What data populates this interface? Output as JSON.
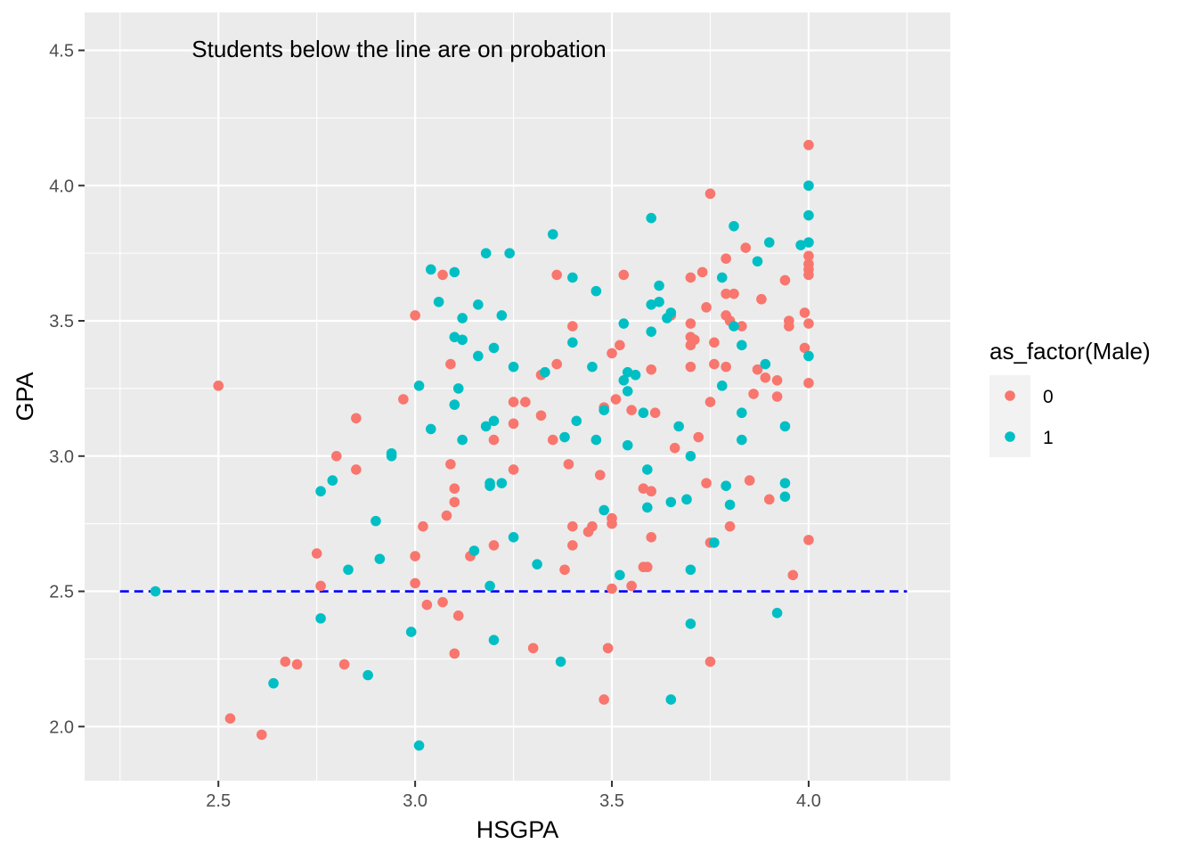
{
  "chart_data": {
    "type": "scatter",
    "title": "",
    "annotation": "Students below the line are on probation",
    "xlabel": "HSGPA",
    "ylabel": "GPA",
    "xlim": [
      2.16,
      4.36
    ],
    "ylim": [
      1.8,
      4.64
    ],
    "x_ticks": [
      "2.5",
      "3.0",
      "3.5",
      "4.0"
    ],
    "x_tick_values": [
      2.5,
      3.0,
      3.5,
      4.0
    ],
    "y_ticks": [
      "2.0",
      "2.5",
      "3.0",
      "3.5",
      "4.0",
      "4.5"
    ],
    "y_tick_values": [
      2.0,
      2.5,
      3.0,
      3.5,
      4.0,
      4.5
    ],
    "grid": true,
    "legend_position": "right",
    "legend": {
      "title": "as_factor(Male)",
      "entries": [
        {
          "label": "0",
          "color": "#F8766D"
        },
        {
          "label": "1",
          "color": "#00BFC4"
        }
      ]
    },
    "reference_line": {
      "y": 2.5,
      "x_from": 2.25,
      "x_to": 4.25,
      "color": "#0000FF",
      "style": "dashed"
    },
    "colors": {
      "panel": "#EBEBEB",
      "grid": "#FFFFFF",
      "axis_text": "#4D4D4D",
      "tick": "#333333"
    },
    "series": [
      {
        "name": "0",
        "color": "#F8766D",
        "points": [
          [
            2.5,
            3.26
          ],
          [
            2.53,
            2.03
          ],
          [
            2.61,
            1.97
          ],
          [
            2.67,
            2.24
          ],
          [
            2.7,
            2.23
          ],
          [
            2.75,
            2.64
          ],
          [
            2.76,
            2.52
          ],
          [
            2.8,
            3.0
          ],
          [
            2.82,
            2.23
          ],
          [
            2.85,
            3.14
          ],
          [
            2.85,
            2.95
          ],
          [
            2.97,
            3.21
          ],
          [
            3.0,
            3.52
          ],
          [
            3.0,
            2.63
          ],
          [
            3.0,
            2.53
          ],
          [
            3.02,
            2.74
          ],
          [
            3.03,
            2.45
          ],
          [
            3.07,
            3.67
          ],
          [
            3.07,
            2.46
          ],
          [
            3.08,
            2.78
          ],
          [
            3.09,
            3.34
          ],
          [
            3.09,
            2.97
          ],
          [
            3.1,
            2.88
          ],
          [
            3.1,
            2.83
          ],
          [
            3.1,
            2.27
          ],
          [
            3.11,
            2.41
          ],
          [
            3.14,
            2.63
          ],
          [
            3.2,
            3.06
          ],
          [
            3.2,
            2.67
          ],
          [
            3.25,
            3.2
          ],
          [
            3.25,
            3.12
          ],
          [
            3.25,
            2.95
          ],
          [
            3.28,
            3.2
          ],
          [
            3.3,
            2.29
          ],
          [
            3.32,
            3.3
          ],
          [
            3.32,
            3.15
          ],
          [
            3.35,
            3.06
          ],
          [
            3.36,
            3.67
          ],
          [
            3.36,
            3.34
          ],
          [
            3.38,
            2.58
          ],
          [
            3.39,
            2.97
          ],
          [
            3.4,
            3.48
          ],
          [
            3.4,
            2.74
          ],
          [
            3.4,
            2.67
          ],
          [
            3.44,
            2.72
          ],
          [
            3.45,
            2.74
          ],
          [
            3.47,
            2.93
          ],
          [
            3.48,
            3.18
          ],
          [
            3.48,
            2.1
          ],
          [
            3.49,
            2.29
          ],
          [
            3.5,
            3.38
          ],
          [
            3.5,
            2.77
          ],
          [
            3.5,
            2.75
          ],
          [
            3.5,
            2.51
          ],
          [
            3.51,
            3.21
          ],
          [
            3.52,
            3.41
          ],
          [
            3.53,
            3.67
          ],
          [
            3.55,
            3.17
          ],
          [
            3.55,
            2.52
          ],
          [
            3.58,
            2.88
          ],
          [
            3.58,
            2.59
          ],
          [
            3.59,
            2.59
          ],
          [
            3.6,
            3.32
          ],
          [
            3.6,
            2.87
          ],
          [
            3.6,
            2.7
          ],
          [
            3.61,
            3.16
          ],
          [
            3.65,
            3.52
          ],
          [
            3.66,
            3.03
          ],
          [
            3.7,
            3.66
          ],
          [
            3.7,
            3.49
          ],
          [
            3.7,
            3.44
          ],
          [
            3.7,
            3.41
          ],
          [
            3.7,
            3.33
          ],
          [
            3.71,
            3.43
          ],
          [
            3.72,
            3.07
          ],
          [
            3.73,
            3.68
          ],
          [
            3.74,
            3.55
          ],
          [
            3.74,
            2.9
          ],
          [
            3.75,
            3.97
          ],
          [
            3.75,
            3.2
          ],
          [
            3.75,
            2.68
          ],
          [
            3.75,
            2.24
          ],
          [
            3.76,
            3.42
          ],
          [
            3.76,
            3.34
          ],
          [
            3.79,
            3.73
          ],
          [
            3.79,
            3.6
          ],
          [
            3.79,
            3.52
          ],
          [
            3.79,
            3.33
          ],
          [
            3.8,
            3.5
          ],
          [
            3.8,
            2.74
          ],
          [
            3.81,
            3.6
          ],
          [
            3.83,
            3.48
          ],
          [
            3.84,
            3.77
          ],
          [
            3.85,
            2.91
          ],
          [
            3.86,
            3.23
          ],
          [
            3.87,
            3.32
          ],
          [
            3.88,
            3.58
          ],
          [
            3.89,
            3.29
          ],
          [
            3.9,
            2.84
          ],
          [
            3.92,
            3.28
          ],
          [
            3.92,
            3.22
          ],
          [
            3.94,
            3.65
          ],
          [
            3.95,
            3.5
          ],
          [
            3.95,
            3.48
          ],
          [
            3.96,
            2.56
          ],
          [
            3.99,
            3.53
          ],
          [
            3.99,
            3.4
          ],
          [
            4.0,
            4.15
          ],
          [
            4.0,
            3.74
          ],
          [
            4.0,
            3.71
          ],
          [
            4.0,
            3.69
          ],
          [
            4.0,
            3.67
          ],
          [
            4.0,
            3.49
          ],
          [
            4.0,
            3.27
          ],
          [
            4.0,
            2.69
          ]
        ]
      },
      {
        "name": "1",
        "color": "#00BFC4",
        "points": [
          [
            2.34,
            2.5
          ],
          [
            2.64,
            2.16
          ],
          [
            2.76,
            2.87
          ],
          [
            2.76,
            2.4
          ],
          [
            2.79,
            2.91
          ],
          [
            2.83,
            2.58
          ],
          [
            2.88,
            2.19
          ],
          [
            2.9,
            2.76
          ],
          [
            2.91,
            2.62
          ],
          [
            2.94,
            3.01
          ],
          [
            2.94,
            3.0
          ],
          [
            2.99,
            2.35
          ],
          [
            3.01,
            3.26
          ],
          [
            3.01,
            1.93
          ],
          [
            3.04,
            3.69
          ],
          [
            3.04,
            3.1
          ],
          [
            3.06,
            3.57
          ],
          [
            3.1,
            3.68
          ],
          [
            3.1,
            3.44
          ],
          [
            3.1,
            3.19
          ],
          [
            3.11,
            3.25
          ],
          [
            3.12,
            3.51
          ],
          [
            3.12,
            3.43
          ],
          [
            3.12,
            3.06
          ],
          [
            3.15,
            2.65
          ],
          [
            3.16,
            3.56
          ],
          [
            3.16,
            3.37
          ],
          [
            3.18,
            3.75
          ],
          [
            3.18,
            3.11
          ],
          [
            3.19,
            2.9
          ],
          [
            3.19,
            2.89
          ],
          [
            3.19,
            2.52
          ],
          [
            3.2,
            3.4
          ],
          [
            3.2,
            3.13
          ],
          [
            3.2,
            2.32
          ],
          [
            3.22,
            3.52
          ],
          [
            3.22,
            2.9
          ],
          [
            3.24,
            3.75
          ],
          [
            3.25,
            3.33
          ],
          [
            3.25,
            2.7
          ],
          [
            3.31,
            2.6
          ],
          [
            3.33,
            3.31
          ],
          [
            3.35,
            3.82
          ],
          [
            3.37,
            2.24
          ],
          [
            3.38,
            3.07
          ],
          [
            3.4,
            3.66
          ],
          [
            3.4,
            3.42
          ],
          [
            3.41,
            3.13
          ],
          [
            3.45,
            3.33
          ],
          [
            3.46,
            3.61
          ],
          [
            3.46,
            3.06
          ],
          [
            3.48,
            3.17
          ],
          [
            3.48,
            2.8
          ],
          [
            3.52,
            2.56
          ],
          [
            3.53,
            3.49
          ],
          [
            3.53,
            3.28
          ],
          [
            3.54,
            3.31
          ],
          [
            3.54,
            3.24
          ],
          [
            3.54,
            3.04
          ],
          [
            3.56,
            3.3
          ],
          [
            3.58,
            3.16
          ],
          [
            3.59,
            2.95
          ],
          [
            3.59,
            2.81
          ],
          [
            3.6,
            3.88
          ],
          [
            3.6,
            3.56
          ],
          [
            3.6,
            3.46
          ],
          [
            3.62,
            3.63
          ],
          [
            3.62,
            3.57
          ],
          [
            3.64,
            3.51
          ],
          [
            3.65,
            3.53
          ],
          [
            3.65,
            2.83
          ],
          [
            3.65,
            2.1
          ],
          [
            3.67,
            3.11
          ],
          [
            3.69,
            2.84
          ],
          [
            3.7,
            3.0
          ],
          [
            3.7,
            2.58
          ],
          [
            3.7,
            2.38
          ],
          [
            3.76,
            2.68
          ],
          [
            3.78,
            3.66
          ],
          [
            3.78,
            3.26
          ],
          [
            3.79,
            2.89
          ],
          [
            3.8,
            2.82
          ],
          [
            3.81,
            3.85
          ],
          [
            3.81,
            3.48
          ],
          [
            3.83,
            3.41
          ],
          [
            3.83,
            3.16
          ],
          [
            3.83,
            3.06
          ],
          [
            3.87,
            3.72
          ],
          [
            3.89,
            3.34
          ],
          [
            3.9,
            3.79
          ],
          [
            3.92,
            2.42
          ],
          [
            3.94,
            3.11
          ],
          [
            3.94,
            2.9
          ],
          [
            3.94,
            2.85
          ],
          [
            3.98,
            3.78
          ],
          [
            4.0,
            4.0
          ],
          [
            4.0,
            3.89
          ],
          [
            4.0,
            3.79
          ],
          [
            4.0,
            3.37
          ]
        ]
      }
    ]
  }
}
